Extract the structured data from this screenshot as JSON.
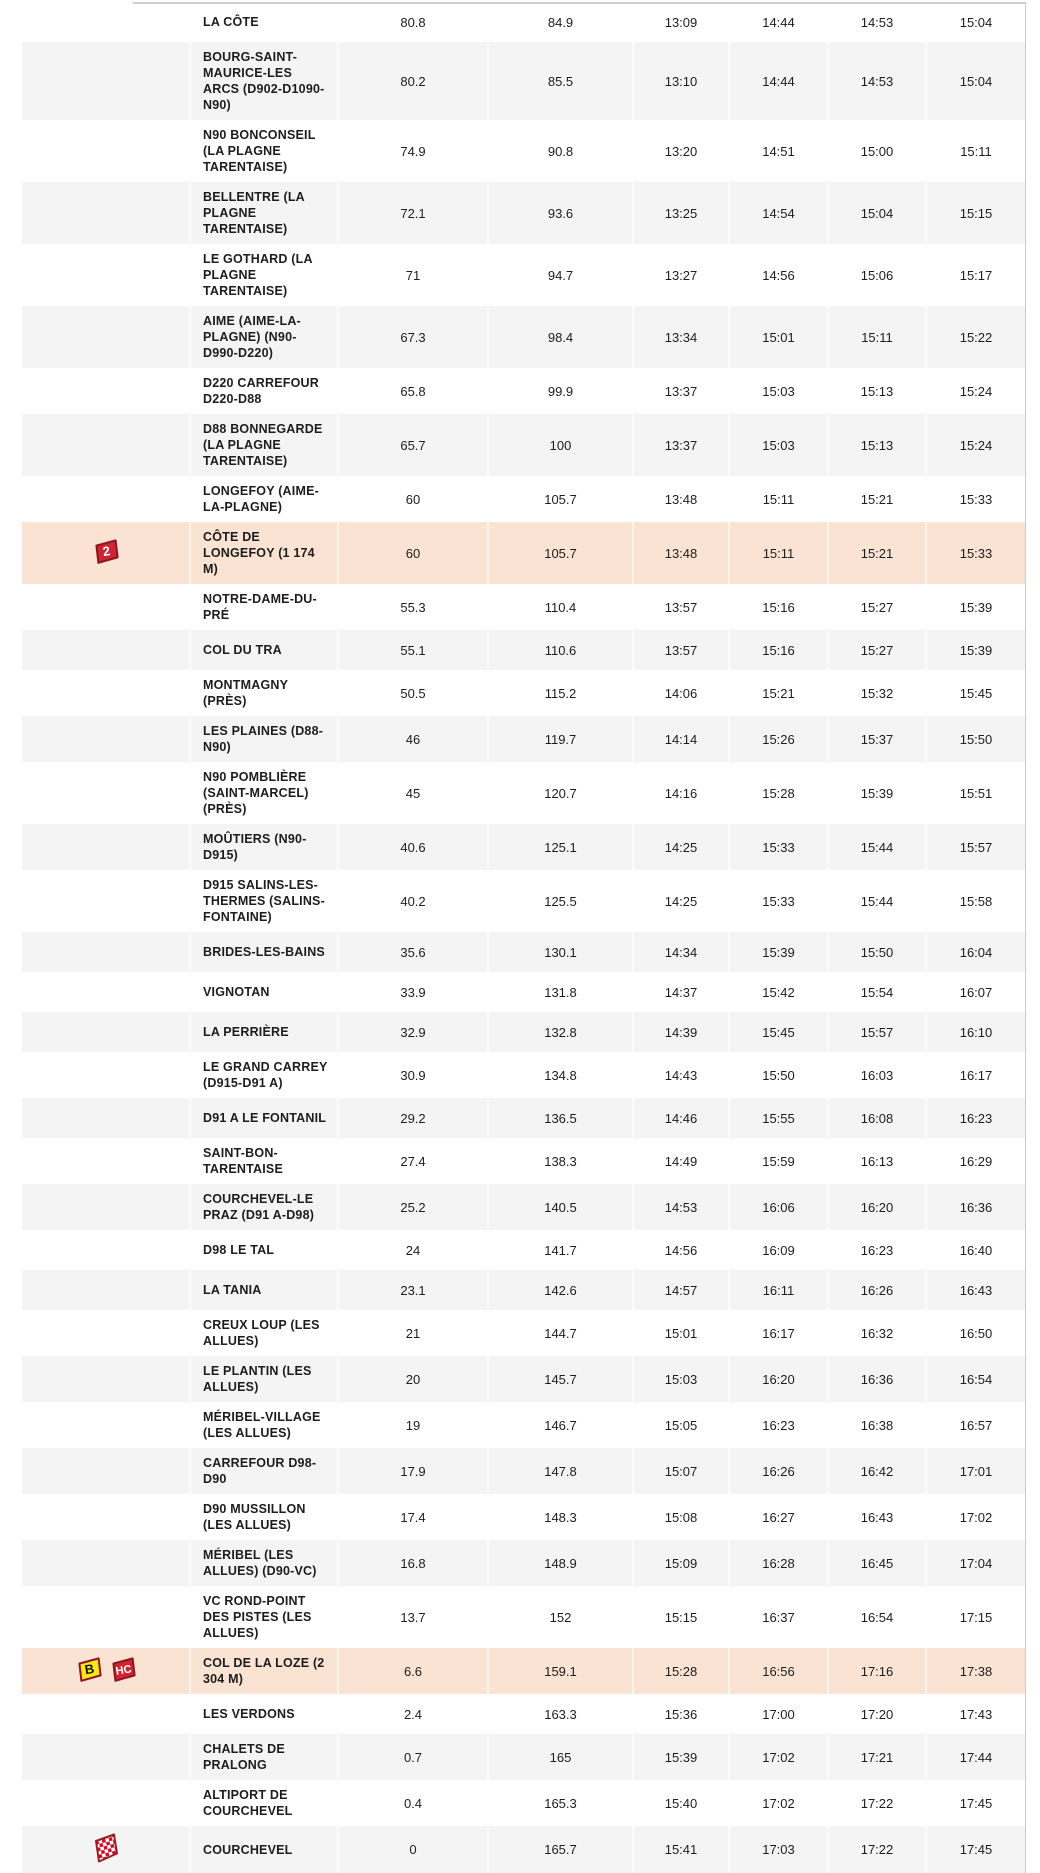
{
  "table": {
    "columns": [
      "icon",
      "location",
      "km_to_go",
      "km_covered",
      "time_1",
      "time_2",
      "time_3",
      "time_4"
    ],
    "stripe_color": "#f4f4f4",
    "highlight_color": "#fbe3d4",
    "badge_styles": {
      "category": {
        "fill": "#cd2533",
        "border": "#8f161f",
        "text": "#ffffff"
      },
      "bonus": {
        "fill": "#f7e81c",
        "border": "#8f161f",
        "text": "#111111"
      },
      "finish": {
        "check_color": "#c8102e",
        "border": "#9c1b24",
        "background": "#ffffff"
      }
    },
    "rows": [
      {
        "location": "LA CÔTE",
        "km_to_go": "80.8",
        "km_covered": "84.9",
        "times": [
          "13:09",
          "14:44",
          "14:53",
          "15:04"
        ],
        "highlight": false,
        "badges": []
      },
      {
        "location": "BOURG-SAINT-MAURICE-LES ARCS (D902-D1090-N90)",
        "km_to_go": "80.2",
        "km_covered": "85.5",
        "times": [
          "13:10",
          "14:44",
          "14:53",
          "15:04"
        ],
        "highlight": false,
        "badges": []
      },
      {
        "location": "N90 BONCONSEIL (LA PLAGNE TARENTAISE)",
        "km_to_go": "74.9",
        "km_covered": "90.8",
        "times": [
          "13:20",
          "14:51",
          "15:00",
          "15:11"
        ],
        "highlight": false,
        "badges": []
      },
      {
        "location": "BELLENTRE (LA PLAGNE TARENTAISE)",
        "km_to_go": "72.1",
        "km_covered": "93.6",
        "times": [
          "13:25",
          "14:54",
          "15:04",
          "15:15"
        ],
        "highlight": false,
        "badges": []
      },
      {
        "location": "LE GOTHARD (LA PLAGNE TARENTAISE)",
        "km_to_go": "71",
        "km_covered": "94.7",
        "times": [
          "13:27",
          "14:56",
          "15:06",
          "15:17"
        ],
        "highlight": false,
        "badges": []
      },
      {
        "location": "AIME (AIME-LA-PLAGNE) (N90-D990-D220)",
        "km_to_go": "67.3",
        "km_covered": "98.4",
        "times": [
          "13:34",
          "15:01",
          "15:11",
          "15:22"
        ],
        "highlight": false,
        "badges": []
      },
      {
        "location": "D220 CARREFOUR D220-D88",
        "km_to_go": "65.8",
        "km_covered": "99.9",
        "times": [
          "13:37",
          "15:03",
          "15:13",
          "15:24"
        ],
        "highlight": false,
        "badges": []
      },
      {
        "location": "D88 BONNEGARDE (LA PLAGNE TARENTAISE)",
        "km_to_go": "65.7",
        "km_covered": "100",
        "times": [
          "13:37",
          "15:03",
          "15:13",
          "15:24"
        ],
        "highlight": false,
        "badges": []
      },
      {
        "location": "LONGEFOY (AIME-LA-PLAGNE)",
        "km_to_go": "60",
        "km_covered": "105.7",
        "times": [
          "13:48",
          "15:11",
          "15:21",
          "15:33"
        ],
        "highlight": false,
        "badges": []
      },
      {
        "location": "CÔTE DE LONGEFOY (1 174 M)",
        "km_to_go": "60",
        "km_covered": "105.7",
        "times": [
          "13:48",
          "15:11",
          "15:21",
          "15:33"
        ],
        "highlight": true,
        "badges": [
          {
            "type": "category",
            "label": "2",
            "name": "category-2-climb-icon"
          }
        ]
      },
      {
        "location": "NOTRE-DAME-DU-PRÉ",
        "km_to_go": "55.3",
        "km_covered": "110.4",
        "times": [
          "13:57",
          "15:16",
          "15:27",
          "15:39"
        ],
        "highlight": false,
        "badges": []
      },
      {
        "location": "COL DU TRA",
        "km_to_go": "55.1",
        "km_covered": "110.6",
        "times": [
          "13:57",
          "15:16",
          "15:27",
          "15:39"
        ],
        "highlight": false,
        "badges": []
      },
      {
        "location": "MONTMAGNY (PRÈS)",
        "km_to_go": "50.5",
        "km_covered": "115.2",
        "times": [
          "14:06",
          "15:21",
          "15:32",
          "15:45"
        ],
        "highlight": false,
        "badges": []
      },
      {
        "location": "LES PLAINES (D88-N90)",
        "km_to_go": "46",
        "km_covered": "119.7",
        "times": [
          "14:14",
          "15:26",
          "15:37",
          "15:50"
        ],
        "highlight": false,
        "badges": []
      },
      {
        "location": "N90 POMBLIÈRE (SAINT-MARCEL) (PRÈS)",
        "km_to_go": "45",
        "km_covered": "120.7",
        "times": [
          "14:16",
          "15:28",
          "15:39",
          "15:51"
        ],
        "highlight": false,
        "badges": []
      },
      {
        "location": "MOÛTIERS (N90-D915)",
        "km_to_go": "40.6",
        "km_covered": "125.1",
        "times": [
          "14:25",
          "15:33",
          "15:44",
          "15:57"
        ],
        "highlight": false,
        "badges": []
      },
      {
        "location": "D915 SALINS-LES-THERMES (SALINS-FONTAINE)",
        "km_to_go": "40.2",
        "km_covered": "125.5",
        "times": [
          "14:25",
          "15:33",
          "15:44",
          "15:58"
        ],
        "highlight": false,
        "badges": []
      },
      {
        "location": "BRIDES-LES-BAINS",
        "km_to_go": "35.6",
        "km_covered": "130.1",
        "times": [
          "14:34",
          "15:39",
          "15:50",
          "16:04"
        ],
        "highlight": false,
        "badges": []
      },
      {
        "location": "VIGNOTAN",
        "km_to_go": "33.9",
        "km_covered": "131.8",
        "times": [
          "14:37",
          "15:42",
          "15:54",
          "16:07"
        ],
        "highlight": false,
        "badges": []
      },
      {
        "location": "LA PERRIÈRE",
        "km_to_go": "32.9",
        "km_covered": "132.8",
        "times": [
          "14:39",
          "15:45",
          "15:57",
          "16:10"
        ],
        "highlight": false,
        "badges": []
      },
      {
        "location": "LE GRAND CARREY (D915-D91 A)",
        "km_to_go": "30.9",
        "km_covered": "134.8",
        "times": [
          "14:43",
          "15:50",
          "16:03",
          "16:17"
        ],
        "highlight": false,
        "badges": []
      },
      {
        "location": "D91 A LE FONTANIL",
        "km_to_go": "29.2",
        "km_covered": "136.5",
        "times": [
          "14:46",
          "15:55",
          "16:08",
          "16:23"
        ],
        "highlight": false,
        "badges": []
      },
      {
        "location": "SAINT-BON-TARENTAISE",
        "km_to_go": "27.4",
        "km_covered": "138.3",
        "times": [
          "14:49",
          "15:59",
          "16:13",
          "16:29"
        ],
        "highlight": false,
        "badges": []
      },
      {
        "location": "COURCHEVEL-LE PRAZ (D91 A-D98)",
        "km_to_go": "25.2",
        "km_covered": "140.5",
        "times": [
          "14:53",
          "16:06",
          "16:20",
          "16:36"
        ],
        "highlight": false,
        "badges": []
      },
      {
        "location": "D98 LE TAL",
        "km_to_go": "24",
        "km_covered": "141.7",
        "times": [
          "14:56",
          "16:09",
          "16:23",
          "16:40"
        ],
        "highlight": false,
        "badges": []
      },
      {
        "location": "LA TANIA",
        "km_to_go": "23.1",
        "km_covered": "142.6",
        "times": [
          "14:57",
          "16:11",
          "16:26",
          "16:43"
        ],
        "highlight": false,
        "badges": []
      },
      {
        "location": "CREUX LOUP (LES ALLUES)",
        "km_to_go": "21",
        "km_covered": "144.7",
        "times": [
          "15:01",
          "16:17",
          "16:32",
          "16:50"
        ],
        "highlight": false,
        "badges": []
      },
      {
        "location": "LE PLANTIN (LES ALLUES)",
        "km_to_go": "20",
        "km_covered": "145.7",
        "times": [
          "15:03",
          "16:20",
          "16:36",
          "16:54"
        ],
        "highlight": false,
        "badges": []
      },
      {
        "location": "MÉRIBEL-VILLAGE (LES ALLUES)",
        "km_to_go": "19",
        "km_covered": "146.7",
        "times": [
          "15:05",
          "16:23",
          "16:38",
          "16:57"
        ],
        "highlight": false,
        "badges": []
      },
      {
        "location": "CARREFOUR D98-D90",
        "km_to_go": "17.9",
        "km_covered": "147.8",
        "times": [
          "15:07",
          "16:26",
          "16:42",
          "17:01"
        ],
        "highlight": false,
        "badges": []
      },
      {
        "location": "D90 MUSSILLON (LES ALLUES)",
        "km_to_go": "17.4",
        "km_covered": "148.3",
        "times": [
          "15:08",
          "16:27",
          "16:43",
          "17:02"
        ],
        "highlight": false,
        "badges": []
      },
      {
        "location": "MÉRIBEL (LES ALLUES) (D90-VC)",
        "km_to_go": "16.8",
        "km_covered": "148.9",
        "times": [
          "15:09",
          "16:28",
          "16:45",
          "17:04"
        ],
        "highlight": false,
        "badges": []
      },
      {
        "location": "VC ROND-POINT DES PISTES (LES ALLUES)",
        "km_to_go": "13.7",
        "km_covered": "152",
        "times": [
          "15:15",
          "16:37",
          "16:54",
          "17:15"
        ],
        "highlight": false,
        "badges": []
      },
      {
        "location": "COL DE LA LOZE (2 304 M)",
        "km_to_go": "6.6",
        "km_covered": "159.1",
        "times": [
          "15:28",
          "16:56",
          "17:16",
          "17:38"
        ],
        "highlight": true,
        "badges": [
          {
            "type": "bonus",
            "label": "B",
            "name": "bonus-sprint-icon"
          },
          {
            "type": "category",
            "label": "HC",
            "name": "hors-categorie-climb-icon"
          }
        ]
      },
      {
        "location": "LES VERDONS",
        "km_to_go": "2.4",
        "km_covered": "163.3",
        "times": [
          "15:36",
          "17:00",
          "17:20",
          "17:43"
        ],
        "highlight": false,
        "badges": []
      },
      {
        "location": "CHALETS DE PRALONG",
        "km_to_go": "0.7",
        "km_covered": "165",
        "times": [
          "15:39",
          "17:02",
          "17:21",
          "17:44"
        ],
        "highlight": false,
        "badges": []
      },
      {
        "location": "ALTIPORT DE COURCHEVEL",
        "km_to_go": "0.4",
        "km_covered": "165.3",
        "times": [
          "15:40",
          "17:02",
          "17:22",
          "17:45"
        ],
        "highlight": false,
        "badges": []
      },
      {
        "location": "COURCHEVEL",
        "km_to_go": "0",
        "km_covered": "165.7",
        "times": [
          "15:41",
          "17:03",
          "17:22",
          "17:45"
        ],
        "highlight": false,
        "badges": [
          {
            "type": "finish",
            "label": "",
            "name": "finish-flag-icon"
          }
        ]
      }
    ]
  }
}
